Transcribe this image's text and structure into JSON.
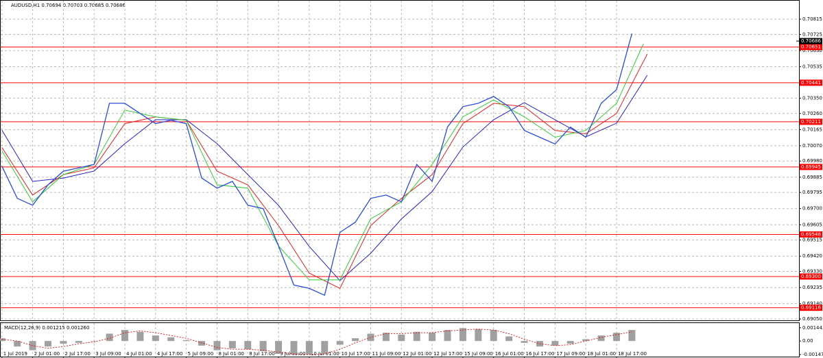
{
  "chart_data": {
    "type": "candlestick-line",
    "header": "AUDUSD,H1  0.70694 0.70703 0.70685 0.70686",
    "xlim": [
      -1,
      415
    ],
    "xticks": [
      {
        "value": 0,
        "label": "1 Jul 2019"
      },
      {
        "value": 16,
        "label": "2 Jul 01:00"
      },
      {
        "value": 32,
        "label": "2 Jul 17:00"
      },
      {
        "value": 48,
        "label": "3 Jul 09:00"
      },
      {
        "value": 64,
        "label": "4 Jul 01:00"
      },
      {
        "value": 80,
        "label": "4 Jul 17:00"
      },
      {
        "value": 96,
        "label": "5 Jul 09:00"
      },
      {
        "value": 112,
        "label": "8 Jul 01:00"
      },
      {
        "value": 128,
        "label": "8 Jul 17:00"
      },
      {
        "value": 144,
        "label": "9 Jul 09:00"
      },
      {
        "value": 160,
        "label": "10 Jul 01:00"
      },
      {
        "value": 176,
        "label": "10 Jul 17:00"
      },
      {
        "value": 192,
        "label": "11 Jul 09:00"
      },
      {
        "value": 208,
        "label": "12 Jul 01:00"
      },
      {
        "value": 224,
        "label": "12 Jul 17:00"
      },
      {
        "value": 240,
        "label": "15 Jul 09:00"
      },
      {
        "value": 256,
        "label": "16 Jul 01:00"
      },
      {
        "value": 272,
        "label": "16 Jul 17:00"
      },
      {
        "value": 288,
        "label": "17 Jul 09:00"
      },
      {
        "value": 304,
        "label": "18 Jul 01:00"
      },
      {
        "value": 320,
        "label": "18 Jul 17:00"
      }
    ],
    "ylim": [
      0.69042,
      0.70928
    ],
    "yticks": [
      0.70815,
      0.70725,
      {
        "value": 0.7063,
        "label": "0.70630"
      },
      0.70535,
      {
        "value": 0.7035,
        "label": "0.70350"
      },
      {
        "value": 0.7026,
        "label": "0.70260"
      },
      0.70165,
      {
        "value": 0.7007,
        "label": "0.70070"
      },
      {
        "value": 0.6998,
        "label": "0.69980"
      },
      0.69885,
      0.69795,
      {
        "value": 0.697,
        "label": "0.69700"
      },
      0.69605,
      0.69515,
      {
        "value": 0.6942,
        "label": "0.69420"
      },
      {
        "value": 0.6933,
        "label": "0.69330"
      },
      0.69235,
      {
        "value": 0.6914,
        "label": "0.69140"
      },
      {
        "value": 0.6905,
        "label": "0.69050"
      }
    ],
    "grid": true,
    "price": {
      "color": "#2a4bd7",
      "x": [
        0,
        8,
        16,
        24,
        32,
        40,
        48,
        56,
        64,
        72,
        80,
        88,
        96,
        104,
        112,
        120,
        128,
        136,
        144,
        152,
        160,
        168,
        176,
        184,
        192,
        200,
        208,
        216,
        224,
        232,
        240,
        248,
        256,
        264,
        272,
        280,
        288,
        296,
        304,
        312,
        320,
        328
      ],
      "values": [
        0.6995,
        0.6976,
        0.6972,
        0.6984,
        0.6992,
        0.6994,
        0.6996,
        0.7032,
        0.7032,
        0.7026,
        0.702,
        0.7022,
        0.702,
        0.6988,
        0.6982,
        0.6986,
        0.6972,
        0.697,
        0.6948,
        0.6925,
        0.6923,
        0.6919,
        0.6956,
        0.6962,
        0.6976,
        0.6978,
        0.6974,
        0.6996,
        0.6986,
        0.7018,
        0.703,
        0.7032,
        0.7036,
        0.703,
        0.7016,
        0.7012,
        0.7008,
        0.7018,
        0.7012,
        0.7032,
        0.704,
        0.7073
      ]
    },
    "moving_averages": [
      {
        "color": "#2222cc",
        "x": [
          0,
          16,
          32,
          48,
          64,
          80,
          96,
          112,
          128,
          144,
          160,
          176,
          192,
          208,
          224,
          240,
          256,
          272,
          288,
          304,
          320,
          336
        ],
        "values": [
          0.70162,
          0.6986,
          0.6988,
          0.69921,
          0.70082,
          0.70223,
          0.70223,
          0.70082,
          0.699,
          0.69719,
          0.69477,
          0.69276,
          0.69437,
          0.69639,
          0.698,
          0.70062,
          0.70223,
          0.70324,
          0.70223,
          0.70122,
          0.70203,
          0.70485
        ]
      },
      {
        "color": "#e02020",
        "x": [
          0,
          16,
          32,
          48,
          64,
          80,
          96,
          112,
          128,
          144,
          160,
          176,
          192,
          208,
          224,
          240,
          256,
          272,
          288,
          304,
          320,
          336
        ],
        "values": [
          0.7006,
          0.6978,
          0.699,
          0.6994,
          0.702,
          0.7024,
          0.7022,
          0.6992,
          0.6984,
          0.696,
          0.6932,
          0.6923,
          0.696,
          0.6976,
          0.699,
          0.702,
          0.7032,
          0.703,
          0.7016,
          0.7014,
          0.7026,
          0.7061
        ]
      },
      {
        "color": "#33cc33",
        "x": [
          0,
          16,
          32,
          48,
          64,
          80,
          96,
          112,
          128,
          144,
          160,
          176,
          192,
          208,
          224,
          240,
          256,
          272,
          288,
          304,
          320,
          334
        ],
        "values": [
          0.7004,
          0.6974,
          0.699,
          0.6996,
          0.7028,
          0.7024,
          0.7022,
          0.6984,
          0.6982,
          0.6948,
          0.6928,
          0.6928,
          0.6964,
          0.6974,
          0.6996,
          0.7024,
          0.7034,
          0.7024,
          0.7012,
          0.7016,
          0.7032,
          0.7067
        ]
      }
    ],
    "levels": [
      0.70651,
      0.70441,
      0.70211,
      0.69945,
      0.69548,
      {
        "value": 0.693,
        "label": "0.69300"
      },
      0.69116
    ],
    "level_color": "#ff0000",
    "last_price": 0.70686,
    "macd": {
      "label": "MACD(12,26,9) 0.001215 0.001260",
      "ylim": [
        -0.0017,
        0.00195
      ],
      "yticks": [
        0.001443,
        {
          "value": 0,
          "label": "0.00"
        },
        -0.001477
      ],
      "x": [
        0,
        8,
        16,
        24,
        32,
        40,
        48,
        56,
        64,
        72,
        80,
        88,
        96,
        104,
        112,
        120,
        128,
        136,
        144,
        152,
        160,
        168,
        176,
        184,
        192,
        200,
        208,
        216,
        224,
        232,
        240,
        248,
        256,
        264,
        272,
        280,
        288,
        296,
        304,
        312,
        320,
        328
      ],
      "histogram": [
        0.0003,
        -0.0006,
        -0.001,
        -0.0006,
        -0.0003,
        -0.0002,
        0.0,
        0.0008,
        0.0012,
        0.001,
        0.0006,
        0.0004,
        0.0001,
        -0.0005,
        -0.001,
        -0.0008,
        -0.0009,
        -0.0011,
        -0.0014,
        -0.0015,
        -0.0015,
        -0.0014,
        -0.0004,
        0.0003,
        0.0008,
        0.0009,
        0.0007,
        0.001,
        0.0009,
        0.0012,
        0.0014,
        0.0013,
        0.0012,
        0.0005,
        -0.0002,
        -0.0006,
        -0.0005,
        -0.0003,
        0.0002,
        0.0006,
        0.0009,
        0.0012
      ],
      "histogram_color": "#a0a0a0",
      "signal": [
        0.0002,
        0.0,
        -0.0005,
        -0.0008,
        -0.0006,
        -0.0003,
        -0.0001,
        0.0003,
        0.0009,
        0.0011,
        0.0009,
        0.0006,
        0.0003,
        -0.0002,
        -0.0007,
        -0.0009,
        -0.0009,
        -0.001,
        -0.0012,
        -0.0014,
        -0.0015,
        -0.0014,
        -0.0009,
        -0.0002,
        0.0004,
        0.0008,
        0.0008,
        0.0009,
        0.0009,
        0.0011,
        0.0012,
        0.0013,
        0.0012,
        0.0008,
        0.0002,
        -0.0003,
        -0.0005,
        -0.0004,
        0.0,
        0.0004,
        0.0007,
        0.001
      ],
      "signal_color": "#e02020"
    }
  }
}
